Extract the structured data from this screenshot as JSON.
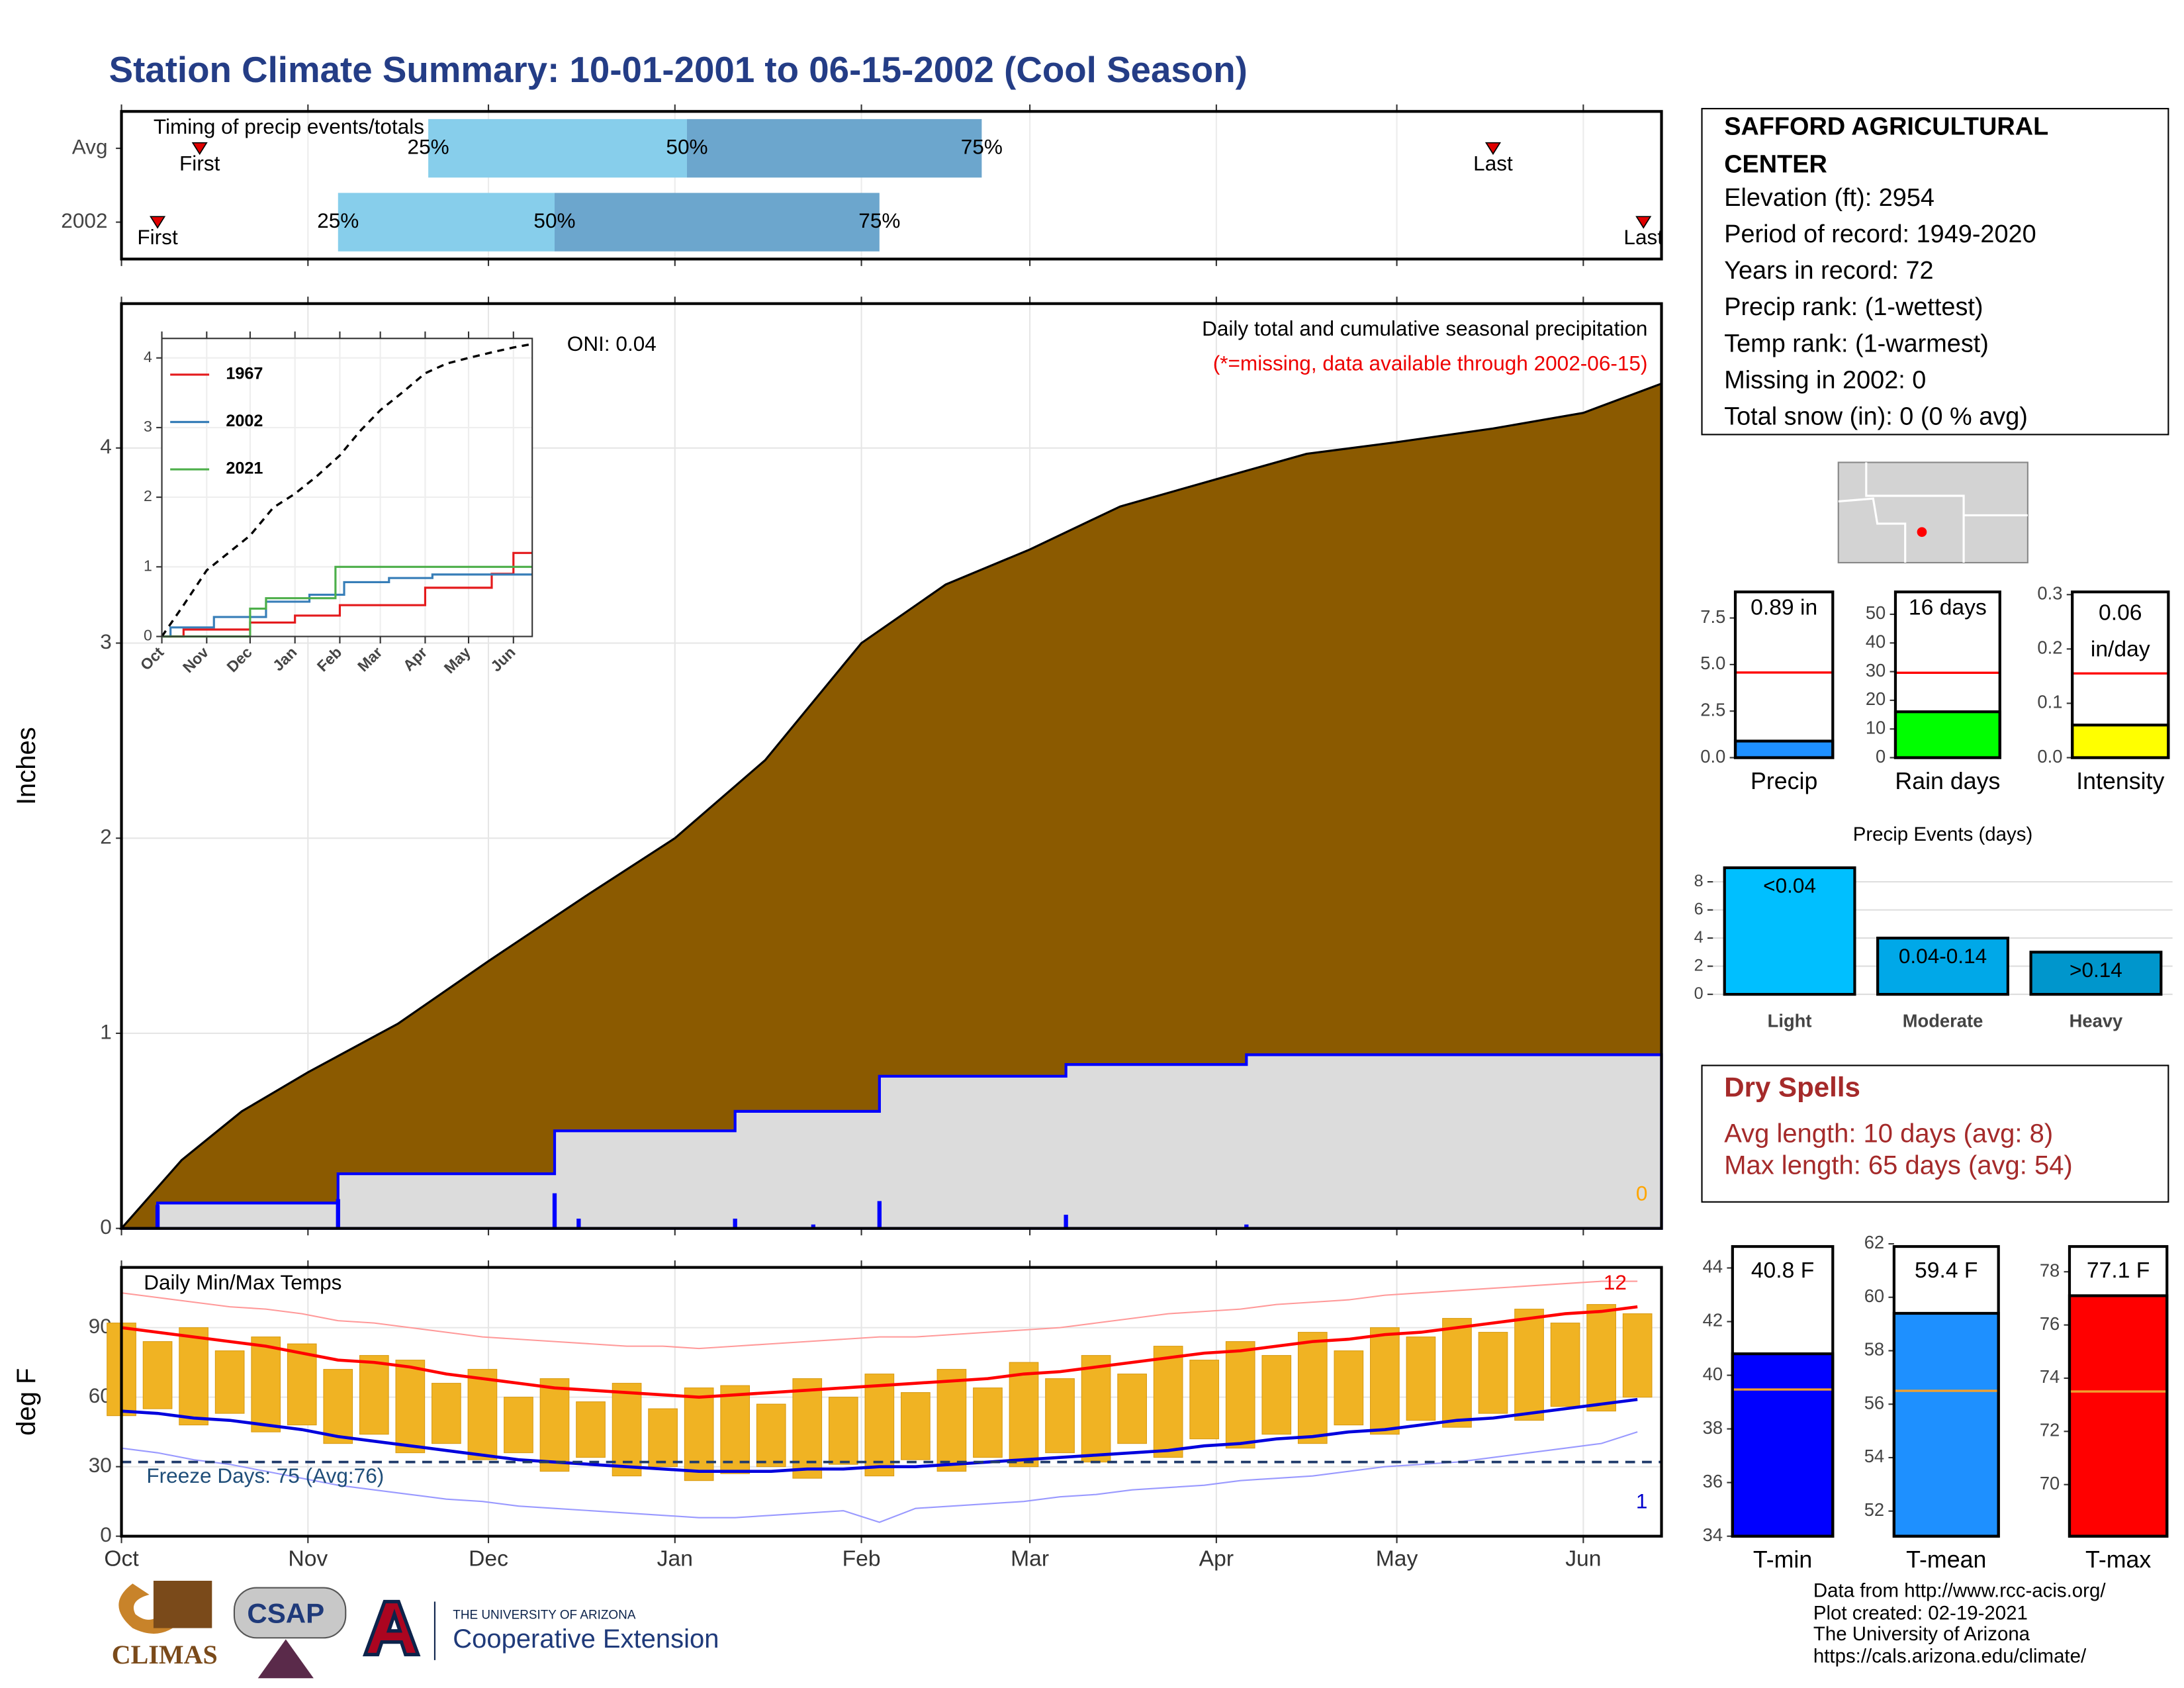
{
  "title": "Station Climate Summary: 10-01-2001 to 06-15-2002 (Cool Season)",
  "station_info": {
    "name_lines": [
      "SAFFORD AGRICULTURAL",
      "CENTER"
    ],
    "lines": [
      "Elevation (ft): 2954",
      "Period of record: 1949-2020",
      "Years in record: 72",
      "Precip rank:  (1-wettest)",
      "Temp rank:  (1-warmest)",
      "Missing in 2002: 0",
      "Total snow (in): 0 (0 % avg)"
    ]
  },
  "dry_spells": {
    "title": "Dry Spells",
    "lines": [
      "Avg length: 10 days (avg: 8)",
      "Max length: 65 days (avg: 54)"
    ]
  },
  "footer": {
    "lines": [
      "Data from http://www.rcc-acis.org/",
      "Plot created: 02-19-2021",
      "The University of Arizona",
      "https://cals.arizona.edu/climate/"
    ]
  },
  "logos": {
    "climas": "CLIMAS",
    "csap": "CSAP",
    "university": "THE UNIVERSITY OF ARIZONA",
    "extension": "Cooperative Extension"
  },
  "chart_data": [
    {
      "type": "timing",
      "title": "Timing of precip events/totals",
      "categories": [
        "Avg",
        "2002"
      ],
      "marker_labels": [
        "First",
        "25%",
        "50%",
        "75%",
        "Last"
      ],
      "values": [
        [
          13,
          51,
          94,
          143,
          228
        ],
        [
          6,
          36,
          72,
          126,
          253
        ]
      ],
      "colors": [
        "#87ceeb",
        "#6ca6cd"
      ],
      "marker_color": "#e00000",
      "xlim": [
        0,
        256
      ],
      "xticks": [
        0,
        31,
        61,
        92,
        123,
        151,
        182,
        212,
        243
      ]
    },
    {
      "type": "area",
      "title": "Daily total and cumulative seasonal precipitation",
      "subtitle": "(*=missing, data available through 2002-06-15)",
      "annotation": "ONI: 0.04",
      "ylabel": "Inches",
      "missing_label": "0",
      "xlim": [
        0,
        256
      ],
      "xticks": [
        0,
        31,
        61,
        92,
        123,
        151,
        182,
        212,
        243
      ],
      "ylim": [
        0,
        4.74
      ],
      "yticks": [
        0,
        1,
        2,
        3,
        4
      ],
      "grid": true,
      "series": [
        {
          "color": "#8b5a00",
          "x": [
            0,
            10,
            20,
            31,
            46,
            61,
            77,
            92,
            107,
            123,
            137,
            151,
            166,
            182,
            197,
            212,
            228,
            243,
            256
          ],
          "values": [
            0,
            0.35,
            0.6,
            0.8,
            1.05,
            1.37,
            1.7,
            2.0,
            2.4,
            3.0,
            3.3,
            3.48,
            3.7,
            3.84,
            3.97,
            4.03,
            4.1,
            4.18,
            4.33
          ]
        },
        {
          "color": "#0000ff",
          "fill": "#dcdcdc",
          "x": [
            0,
            6,
            6,
            36,
            36,
            72,
            72,
            102,
            102,
            126,
            126,
            157,
            157,
            187,
            187,
            256
          ],
          "values": [
            0,
            0,
            0.13,
            0.13,
            0.28,
            0.28,
            0.5,
            0.5,
            0.6,
            0.6,
            0.78,
            0.78,
            0.84,
            0.84,
            0.89,
            0.89
          ]
        }
      ],
      "daily": {
        "color": "#0000ff",
        "x": [
          6,
          36,
          72,
          76,
          102,
          115,
          126,
          157,
          187
        ],
        "values": [
          0.12,
          0.15,
          0.18,
          0.05,
          0.05,
          0.02,
          0.14,
          0.07,
          0.02
        ]
      }
    },
    {
      "type": "line",
      "xlim": [
        0,
        256
      ],
      "xticks": [
        {
          "value": 0,
          "label": "Oct"
        },
        {
          "value": 31,
          "label": "Nov"
        },
        {
          "value": 61,
          "label": "Dec"
        },
        {
          "value": 92,
          "label": "Jan"
        },
        {
          "value": 123,
          "label": "Feb"
        },
        {
          "value": 151,
          "label": "Mar"
        },
        {
          "value": 182,
          "label": "Apr"
        },
        {
          "value": 212,
          "label": "May"
        },
        {
          "value": 243,
          "label": "Jun"
        }
      ],
      "ylim": [
        0,
        4.28
      ],
      "yticks": [
        0,
        1,
        2,
        3,
        4
      ],
      "grid": true,
      "series": [
        {
          "name": "1967",
          "color": "#e41a1c",
          "x": [
            0,
            15,
            15,
            61,
            61,
            92,
            92,
            123,
            123,
            182,
            182,
            228,
            228,
            243,
            243,
            256
          ],
          "values": [
            0,
            0,
            0.1,
            0.1,
            0.2,
            0.2,
            0.3,
            0.3,
            0.45,
            0.45,
            0.7,
            0.7,
            0.9,
            0.9,
            1.2,
            1.2
          ]
        },
        {
          "name": "2002",
          "color": "#377eb8",
          "x": [
            0,
            6,
            6,
            36,
            36,
            72,
            72,
            102,
            102,
            126,
            126,
            157,
            157,
            187,
            187,
            256
          ],
          "values": [
            0,
            0,
            0.13,
            0.13,
            0.28,
            0.28,
            0.5,
            0.5,
            0.6,
            0.6,
            0.78,
            0.78,
            0.84,
            0.84,
            0.89,
            0.89
          ]
        },
        {
          "name": "2021",
          "color": "#4daf4a",
          "x": [
            0,
            61,
            61,
            72,
            72,
            120,
            120,
            256
          ],
          "values": [
            0,
            0,
            0.4,
            0.4,
            0.55,
            0.55,
            1.0,
            1.0
          ]
        },
        {
          "color": "#000000",
          "dashed": true,
          "x": [
            0,
            15,
            31,
            46,
            61,
            77,
            92,
            107,
            123,
            137,
            151,
            166,
            182,
            197,
            212,
            228,
            243,
            256
          ],
          "values": [
            0,
            0.45,
            0.95,
            1.2,
            1.45,
            1.85,
            2.05,
            2.3,
            2.6,
            2.95,
            3.25,
            3.5,
            3.78,
            3.92,
            4.0,
            4.08,
            4.15,
            4.2
          ]
        }
      ]
    },
    {
      "type": "temperature",
      "title": "Daily Min/Max Temps",
      "annotation": "Freeze Days: 75 (Avg:76)",
      "ylabel": "deg F",
      "record_high_label": "12",
      "record_low_label": "1",
      "xlim": [
        0,
        256
      ],
      "xticks": [
        {
          "value": 0,
          "label": "Oct"
        },
        {
          "value": 31,
          "label": "Nov"
        },
        {
          "value": 61,
          "label": "Dec"
        },
        {
          "value": 92,
          "label": "Jan"
        },
        {
          "value": 123,
          "label": "Feb"
        },
        {
          "value": 151,
          "label": "Mar"
        },
        {
          "value": 182,
          "label": "Apr"
        },
        {
          "value": 212,
          "label": "May"
        },
        {
          "value": 243,
          "label": "Jun"
        }
      ],
      "ylim": [
        0,
        116
      ],
      "yticks": [
        0,
        30,
        60,
        90
      ],
      "grid": true,
      "freeze": 32,
      "bar_color": "#f0b323",
      "x": [
        0,
        6,
        12,
        18,
        24,
        30,
        36,
        42,
        48,
        54,
        60,
        66,
        72,
        78,
        84,
        90,
        96,
        102,
        108,
        114,
        120,
        126,
        132,
        138,
        144,
        150,
        156,
        162,
        168,
        174,
        180,
        186,
        192,
        198,
        204,
        210,
        216,
        222,
        228,
        234,
        240,
        246,
        252
      ],
      "min": [
        52,
        55,
        48,
        53,
        45,
        48,
        40,
        44,
        36,
        40,
        33,
        36,
        28,
        34,
        26,
        30,
        24,
        27,
        30,
        25,
        31,
        26,
        33,
        28,
        34,
        30,
        36,
        32,
        40,
        34,
        42,
        38,
        44,
        40,
        48,
        44,
        50,
        47,
        53,
        50,
        56,
        54,
        60
      ],
      "max": [
        92,
        84,
        90,
        80,
        86,
        83,
        72,
        78,
        76,
        66,
        72,
        60,
        68,
        58,
        66,
        55,
        64,
        65,
        57,
        68,
        60,
        70,
        62,
        72,
        64,
        75,
        68,
        78,
        70,
        82,
        76,
        84,
        78,
        88,
        80,
        90,
        86,
        94,
        88,
        98,
        92,
        100,
        96
      ],
      "lines": [
        {
          "color": "#ff9999",
          "thin": true,
          "values": [
            105,
            103,
            101,
            99,
            98,
            96,
            93,
            92,
            90,
            88,
            86,
            85,
            84,
            83,
            82,
            82,
            81,
            82,
            83,
            84,
            85,
            86,
            86,
            87,
            88,
            89,
            90,
            92,
            94,
            96,
            97,
            98,
            100,
            101,
            102,
            104,
            105,
            106,
            107,
            108,
            109,
            110,
            110
          ]
        },
        {
          "color": "#9999ff",
          "thin": true,
          "values": [
            38,
            36,
            33,
            31,
            28,
            25,
            22,
            20,
            18,
            16,
            15,
            13,
            12,
            11,
            10,
            9,
            8,
            8,
            9,
            10,
            11,
            6,
            12,
            13,
            14,
            15,
            17,
            18,
            20,
            21,
            22,
            24,
            25,
            26,
            28,
            30,
            31,
            32,
            34,
            36,
            38,
            40,
            45
          ]
        },
        {
          "color": "#ff0000",
          "values": [
            90,
            88,
            86,
            84,
            82,
            79,
            76,
            75,
            73,
            70,
            68,
            66,
            64,
            63,
            62,
            61,
            60,
            61,
            62,
            63,
            64,
            65,
            66,
            67,
            68,
            70,
            71,
            73,
            75,
            77,
            79,
            80,
            82,
            84,
            85,
            87,
            88,
            90,
            92,
            94,
            96,
            97,
            99
          ]
        },
        {
          "color": "#0000dd",
          "values": [
            54,
            53,
            51,
            50,
            48,
            46,
            43,
            41,
            39,
            37,
            35,
            33,
            32,
            31,
            30,
            29,
            28,
            28,
            28,
            29,
            29,
            30,
            30,
            31,
            32,
            33,
            34,
            35,
            36,
            37,
            39,
            40,
            42,
            43,
            45,
            46,
            48,
            50,
            51,
            53,
            55,
            57,
            59
          ]
        }
      ]
    },
    {
      "type": "bar",
      "categories": [
        "Precip"
      ],
      "values": [
        0.89
      ],
      "value_labels": [
        "0.89 in"
      ],
      "colors": [
        "#1e90ff"
      ],
      "reference": 4.57,
      "reference_color": "#ff0000",
      "ylim": [
        0,
        8.9
      ],
      "yticks": [
        {
          "value": 0,
          "label": "0.0"
        },
        {
          "value": 2.5,
          "label": "2.5"
        },
        {
          "value": 5,
          "label": "5.0"
        },
        {
          "value": 7.5,
          "label": "7.5"
        }
      ]
    },
    {
      "type": "bar",
      "categories": [
        "Rain days"
      ],
      "values": [
        16
      ],
      "value_labels": [
        "16 days"
      ],
      "colors": [
        "#00ff00"
      ],
      "reference": 29.6,
      "reference_color": "#ff0000",
      "ylim": [
        0,
        57.8
      ],
      "yticks": [
        0,
        10,
        20,
        30,
        40,
        50
      ]
    },
    {
      "type": "bar",
      "categories": [
        "Intensity"
      ],
      "values": [
        0.06
      ],
      "value_labels": [
        "0.06"
      ],
      "unit": "in/day",
      "colors": [
        "#ffff00"
      ],
      "reference": 0.155,
      "reference_color": "#ff0000",
      "ylim": [
        0,
        0.305
      ],
      "yticks": [
        {
          "value": 0,
          "label": "0.0"
        },
        0.1,
        0.2,
        0.3
      ]
    },
    {
      "type": "bar",
      "title": "Precip Events (days)",
      "categories": [
        "Light",
        "Moderate",
        "Heavy"
      ],
      "values": [
        9,
        4,
        3
      ],
      "class_labels": [
        "<0.04",
        "0.04-0.14",
        ">0.14"
      ],
      "colors": [
        "#00bfff",
        "#00a8e8",
        "#0096cc"
      ],
      "ylim": [
        -0.6,
        9.5
      ],
      "yticks": [
        0,
        2,
        4,
        6,
        8
      ],
      "grid": true
    },
    {
      "type": "bar",
      "categories": [
        "T-min"
      ],
      "values": [
        40.8
      ],
      "value_labels": [
        "40.8 F"
      ],
      "colors": [
        "#0000ff"
      ],
      "reference": 39.47,
      "reference_color": "#f0a030",
      "ylim": [
        34,
        44.8
      ],
      "yticks": [
        34,
        36,
        38,
        40,
        42,
        44
      ]
    },
    {
      "type": "bar",
      "categories": [
        "T-mean"
      ],
      "values": [
        59.4
      ],
      "value_labels": [
        "59.4 F"
      ],
      "colors": [
        "#1e90ff"
      ],
      "reference": 56.5,
      "reference_color": "#f0a030",
      "ylim": [
        51.06,
        61.9
      ],
      "yticks": [
        52,
        54,
        56,
        58,
        60,
        62
      ]
    },
    {
      "type": "bar",
      "categories": [
        "T-max"
      ],
      "values": [
        77.1
      ],
      "value_labels": [
        "77.1 F"
      ],
      "colors": [
        "#ff0000"
      ],
      "reference": 73.5,
      "reference_color": "#f0a030",
      "ylim": [
        68.06,
        78.95
      ],
      "yticks": [
        70,
        72,
        74,
        76,
        78
      ]
    }
  ]
}
